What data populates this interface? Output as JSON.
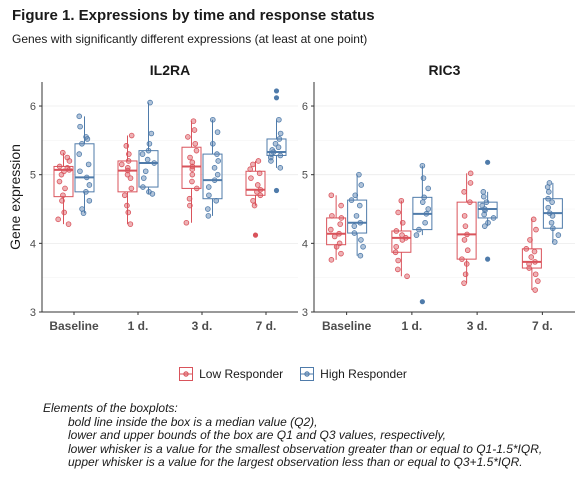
{
  "title": "Figure 1. Expressions by time and response status",
  "subtitle": "Genes with significantly different expressions (at least at one point)",
  "colors": {
    "low": "#D9535B",
    "high": "#4F7BAA",
    "grid": "#EBEBEB",
    "axis": "#333333"
  },
  "legend": {
    "low_label": "Low Responder",
    "high_label": "High Responder"
  },
  "caption": {
    "heading": "Elements of the boxplots:",
    "lines": [
      "bold line inside the box is a median value (Q2),",
      "lower and upper bounds of the box are Q1 and Q3 values, respectively,",
      "lower whisker is a value for the smallest observation greater than or equal to Q1-1.5*IQR,",
      "upper whisker is a value for the largest observation less than or equal to Q3+1.5*IQR."
    ]
  },
  "chart_data": {
    "type": "boxplot",
    "ylabel": "Gene expression",
    "ylim": [
      3,
      6.35
    ],
    "yticks": [
      3,
      4,
      5,
      6
    ],
    "categories": [
      "Baseline",
      "1 d.",
      "3 d.",
      "7 d."
    ],
    "legend_position": "bottom",
    "grid": true,
    "panels": [
      {
        "title": "IL2RA",
        "groups": {
          "low": [
            {
              "q1": 4.68,
              "med": 5.07,
              "q3": 5.12,
              "wlo": 4.28,
              "whi": 5.32,
              "points": [
                4.28,
                4.35,
                4.45,
                4.62,
                4.7,
                4.8,
                4.9,
                5.0,
                5.05,
                5.07,
                5.1,
                5.12,
                5.2,
                5.25,
                5.32
              ]
            },
            {
              "q1": 4.75,
              "med": 5.06,
              "q3": 5.2,
              "wlo": 4.28,
              "whi": 5.57,
              "points": [
                4.28,
                4.45,
                4.55,
                4.7,
                4.8,
                4.95,
                5.0,
                5.06,
                5.1,
                5.15,
                5.2,
                5.3,
                5.42,
                5.57
              ]
            },
            {
              "q1": 4.8,
              "med": 5.12,
              "q3": 5.4,
              "wlo": 4.3,
              "whi": 5.78,
              "points": [
                4.3,
                4.55,
                4.65,
                4.8,
                4.9,
                5.0,
                5.08,
                5.12,
                5.18,
                5.25,
                5.35,
                5.45,
                5.55,
                5.65,
                5.78
              ]
            },
            {
              "q1": 4.7,
              "med": 4.78,
              "q3": 5.05,
              "wlo": 4.55,
              "whi": 5.2,
              "outliers": [
                4.12
              ],
              "points": [
                4.55,
                4.62,
                4.7,
                4.75,
                4.78,
                4.85,
                4.95,
                5.02,
                5.08,
                5.15,
                5.2
              ]
            }
          ],
          "high": [
            {
              "q1": 4.75,
              "med": 4.96,
              "q3": 5.45,
              "wlo": 4.44,
              "whi": 5.85,
              "points": [
                4.44,
                4.5,
                4.62,
                4.75,
                4.85,
                4.96,
                5.05,
                5.15,
                5.3,
                5.45,
                5.52,
                5.55,
                5.7,
                5.85
              ]
            },
            {
              "q1": 4.82,
              "med": 5.17,
              "q3": 5.35,
              "wlo": 4.72,
              "whi": 6.05,
              "points": [
                4.72,
                4.75,
                4.82,
                4.95,
                5.05,
                5.17,
                5.22,
                5.3,
                5.35,
                5.45,
                5.6,
                6.05
              ]
            },
            {
              "q1": 4.65,
              "med": 4.92,
              "q3": 5.3,
              "wlo": 4.4,
              "whi": 5.8,
              "points": [
                4.4,
                4.5,
                4.62,
                4.7,
                4.82,
                4.92,
                5.0,
                5.1,
                5.2,
                5.3,
                5.45,
                5.62,
                5.8
              ]
            },
            {
              "q1": 5.28,
              "med": 5.33,
              "q3": 5.52,
              "wlo": 5.1,
              "whi": 5.8,
              "outliers": [
                4.77,
                6.12,
                6.22
              ],
              "points": [
                5.1,
                5.2,
                5.25,
                5.28,
                5.3,
                5.33,
                5.36,
                5.4,
                5.45,
                5.52,
                5.6,
                5.8
              ]
            }
          ]
        }
      },
      {
        "title": "RIC3",
        "groups": {
          "low": [
            {
              "q1": 3.98,
              "med": 4.14,
              "q3": 4.37,
              "wlo": 3.76,
              "whi": 4.7,
              "points": [
                3.76,
                3.85,
                3.95,
                4.0,
                4.1,
                4.14,
                4.2,
                4.28,
                4.37,
                4.4,
                4.55,
                4.7
              ]
            },
            {
              "q1": 3.87,
              "med": 4.08,
              "q3": 4.18,
              "wlo": 3.52,
              "whi": 4.62,
              "points": [
                3.52,
                3.62,
                3.75,
                3.87,
                3.95,
                4.05,
                4.08,
                4.12,
                4.18,
                4.3,
                4.45,
                4.62
              ]
            },
            {
              "q1": 3.77,
              "med": 4.13,
              "q3": 4.6,
              "wlo": 3.42,
              "whi": 5.02,
              "points": [
                3.42,
                3.55,
                3.7,
                3.77,
                3.9,
                4.05,
                4.13,
                4.25,
                4.4,
                4.6,
                4.75,
                4.88,
                5.02
              ]
            },
            {
              "q1": 3.64,
              "med": 3.73,
              "q3": 3.92,
              "wlo": 3.32,
              "whi": 4.35,
              "points": [
                3.32,
                3.45,
                3.55,
                3.64,
                3.7,
                3.73,
                3.8,
                3.88,
                3.92,
                4.05,
                4.2,
                4.35
              ]
            }
          ],
          "high": [
            {
              "q1": 4.15,
              "med": 4.3,
              "q3": 4.63,
              "wlo": 3.82,
              "whi": 5.0,
              "points": [
                3.82,
                3.95,
                4.05,
                4.15,
                4.25,
                4.3,
                4.4,
                4.55,
                4.63,
                4.7,
                4.85,
                5.0
              ]
            },
            {
              "q1": 4.2,
              "med": 4.43,
              "q3": 4.67,
              "wlo": 4.12,
              "whi": 5.13,
              "outliers": [
                3.15
              ],
              "points": [
                4.12,
                4.2,
                4.3,
                4.43,
                4.5,
                4.6,
                4.67,
                4.8,
                4.95,
                5.13
              ]
            },
            {
              "q1": 4.37,
              "med": 4.5,
              "q3": 4.6,
              "wlo": 4.25,
              "whi": 4.75,
              "outliers": [
                3.77,
                5.18
              ],
              "points": [
                4.25,
                4.3,
                4.37,
                4.42,
                4.48,
                4.5,
                4.55,
                4.6,
                4.68,
                4.75
              ]
            },
            {
              "q1": 4.22,
              "med": 4.44,
              "q3": 4.65,
              "wlo": 4.02,
              "whi": 4.88,
              "points": [
                4.02,
                4.12,
                4.22,
                4.3,
                4.4,
                4.44,
                4.52,
                4.6,
                4.65,
                4.75,
                4.82,
                4.88
              ]
            }
          ]
        }
      }
    ]
  }
}
